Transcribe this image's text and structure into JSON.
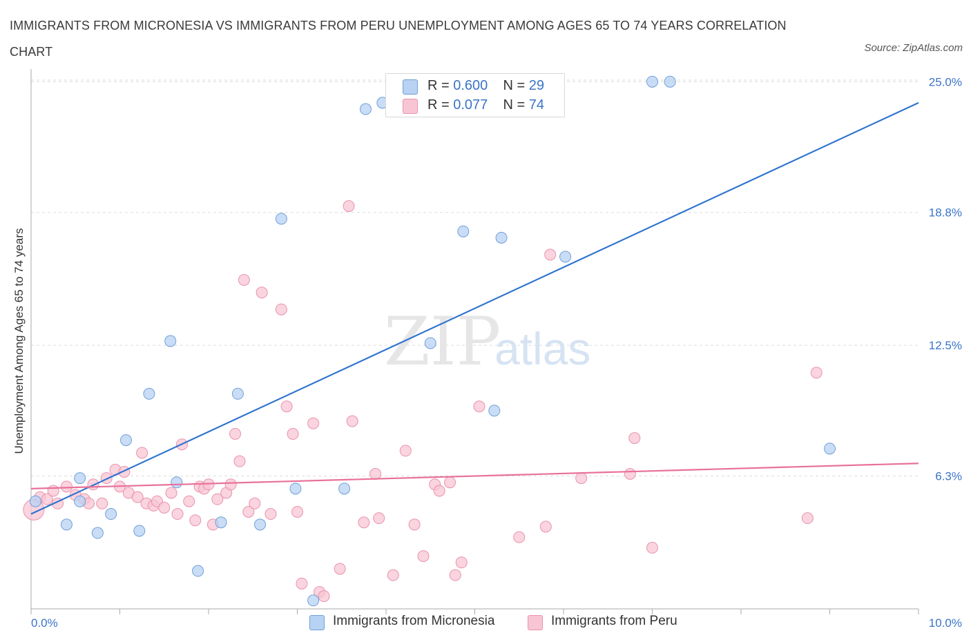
{
  "title": "IMMIGRANTS FROM MICRONESIA VS IMMIGRANTS FROM PERU UNEMPLOYMENT AMONG AGES 65 TO 74 YEARS CORRELATION CHART",
  "source": "Source: ZipAtlas.com",
  "watermark": {
    "zip": "ZIP",
    "atlas": "atlas"
  },
  "legend": {
    "r_label": "R =",
    "n_label": "N =",
    "micronesia": {
      "r": "0.600",
      "n": "29"
    },
    "peru": {
      "r": "0.077",
      "n": "74"
    }
  },
  "colors": {
    "blue_fill": "#b8d2f3",
    "blue_stroke": "#6f9fd8",
    "blue_line": "#2f74cf",
    "pink_fill": "#f8c5d4",
    "pink_stroke": "#e893ad",
    "pink_line": "#e8709a",
    "axis_label": "#3a74c8",
    "grid": "#dcdcdc"
  },
  "chart_data": {
    "type": "scatter",
    "title": "IMMIGRANTS FROM MICRONESIA VS IMMIGRANTS FROM PERU UNEMPLOYMENT AMONG AGES 65 TO 74 YEARS CORRELATION CHART",
    "xlabel": "",
    "ylabel": "Unemployment Among Ages 65 to 74 years",
    "xlim": [
      0,
      10
    ],
    "ylim": [
      0,
      25.6
    ],
    "x_tick_labels": [
      {
        "value": 0,
        "label": "0.0%"
      },
      {
        "value": 10,
        "label": "10.0%"
      }
    ],
    "y_tick_labels": [
      {
        "value": 6.3,
        "label": "6.3%"
      },
      {
        "value": 12.5,
        "label": "12.5%"
      },
      {
        "value": 18.8,
        "label": "18.8%"
      },
      {
        "value": 25.0,
        "label": "25.0%"
      }
    ],
    "series": [
      {
        "name": "Immigrants from Micronesia",
        "color": "blue",
        "points": [
          [
            0.05,
            5.1
          ],
          [
            0.4,
            4.0
          ],
          [
            0.55,
            5.1
          ],
          [
            0.55,
            6.2
          ],
          [
            0.75,
            3.6
          ],
          [
            0.9,
            4.5
          ],
          [
            1.07,
            8.0
          ],
          [
            1.22,
            3.7
          ],
          [
            1.33,
            10.2
          ],
          [
            1.57,
            12.7
          ],
          [
            1.64,
            6.0
          ],
          [
            1.88,
            1.8
          ],
          [
            2.14,
            4.1
          ],
          [
            2.33,
            10.2
          ],
          [
            2.58,
            4.0
          ],
          [
            2.82,
            18.5
          ],
          [
            2.98,
            5.7
          ],
          [
            3.18,
            0.4
          ],
          [
            3.53,
            5.7
          ],
          [
            3.77,
            23.7
          ],
          [
            3.96,
            24.0
          ],
          [
            4.5,
            12.6
          ],
          [
            4.87,
            17.9
          ],
          [
            5.3,
            17.6
          ],
          [
            5.22,
            9.4
          ],
          [
            6.02,
            16.7
          ],
          [
            7.0,
            25.0
          ],
          [
            7.2,
            25.0
          ],
          [
            9.0,
            7.6
          ]
        ]
      },
      {
        "name": "Immigrants from Peru",
        "color": "pink",
        "points": [
          [
            0.03,
            4.7
          ],
          [
            0.1,
            5.3
          ],
          [
            0.18,
            5.2
          ],
          [
            0.25,
            5.6
          ],
          [
            0.3,
            5.0
          ],
          [
            0.4,
            5.8
          ],
          [
            0.5,
            5.4
          ],
          [
            0.6,
            5.2
          ],
          [
            0.65,
            5.0
          ],
          [
            0.7,
            5.9
          ],
          [
            0.8,
            5.0
          ],
          [
            0.85,
            6.2
          ],
          [
            0.95,
            6.6
          ],
          [
            1.0,
            5.8
          ],
          [
            1.05,
            6.5
          ],
          [
            1.1,
            5.5
          ],
          [
            1.2,
            5.3
          ],
          [
            1.25,
            7.4
          ],
          [
            1.3,
            5.0
          ],
          [
            1.38,
            4.9
          ],
          [
            1.42,
            5.1
          ],
          [
            1.5,
            4.8
          ],
          [
            1.58,
            5.5
          ],
          [
            1.65,
            4.5
          ],
          [
            1.7,
            7.8
          ],
          [
            1.78,
            5.1
          ],
          [
            1.85,
            4.2
          ],
          [
            1.9,
            5.8
          ],
          [
            1.95,
            5.7
          ],
          [
            2.0,
            5.9
          ],
          [
            2.05,
            4.0
          ],
          [
            2.1,
            5.2
          ],
          [
            2.2,
            5.5
          ],
          [
            2.25,
            5.9
          ],
          [
            2.3,
            8.3
          ],
          [
            2.35,
            7.0
          ],
          [
            2.4,
            15.6
          ],
          [
            2.45,
            4.6
          ],
          [
            2.52,
            5.0
          ],
          [
            2.6,
            15.0
          ],
          [
            2.7,
            4.5
          ],
          [
            2.82,
            14.2
          ],
          [
            2.88,
            9.6
          ],
          [
            2.95,
            8.3
          ],
          [
            3.0,
            4.6
          ],
          [
            3.05,
            1.2
          ],
          [
            3.18,
            8.8
          ],
          [
            3.25,
            0.8
          ],
          [
            3.3,
            0.6
          ],
          [
            3.48,
            1.9
          ],
          [
            3.58,
            19.1
          ],
          [
            3.62,
            8.9
          ],
          [
            3.75,
            4.1
          ],
          [
            3.88,
            6.4
          ],
          [
            3.92,
            4.3
          ],
          [
            4.08,
            1.6
          ],
          [
            4.22,
            7.5
          ],
          [
            4.32,
            4.0
          ],
          [
            4.42,
            2.5
          ],
          [
            4.55,
            5.9
          ],
          [
            4.6,
            5.6
          ],
          [
            4.72,
            6.0
          ],
          [
            4.78,
            1.6
          ],
          [
            4.85,
            2.2
          ],
          [
            5.05,
            9.6
          ],
          [
            5.5,
            3.4
          ],
          [
            5.8,
            3.9
          ],
          [
            5.85,
            16.8
          ],
          [
            6.2,
            6.2
          ],
          [
            6.75,
            6.4
          ],
          [
            6.8,
            8.1
          ],
          [
            7.0,
            2.9
          ],
          [
            8.75,
            4.3
          ],
          [
            8.85,
            11.2
          ]
        ]
      }
    ],
    "trend_lines": [
      {
        "series": "Immigrants from Micronesia",
        "x": [
          0,
          10
        ],
        "y": [
          4.5,
          24.0
        ]
      },
      {
        "series": "Immigrants from Peru",
        "x": [
          0,
          10
        ],
        "y": [
          5.7,
          6.9
        ]
      }
    ],
    "grid": true,
    "legend_placement": "top-center"
  }
}
